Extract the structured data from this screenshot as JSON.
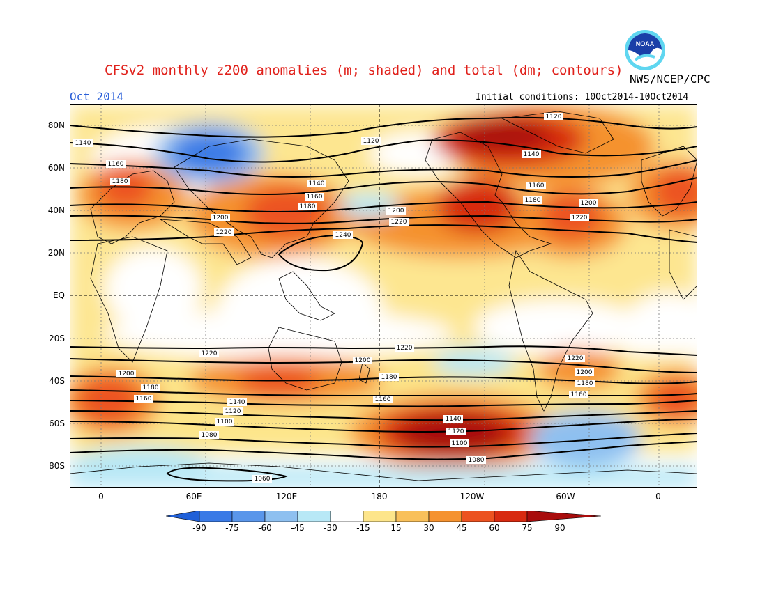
{
  "title": "CFSv2 monthly z200 anomalies (m; shaded) and total (dm; contours)",
  "agency": "NWS/NCEP/CPC",
  "month": "Oct 2014",
  "initial_conditions": "Initial conditions: 10Oct2014-10Oct2014",
  "logo": {
    "icon": "noaa-logo-icon",
    "text": "NOAA"
  },
  "lat_labels": [
    "80N",
    "60N",
    "40N",
    "20N",
    "EQ",
    "20S",
    "40S",
    "60S",
    "80S"
  ],
  "lon_labels": [
    "0",
    "60E",
    "120E",
    "180",
    "120W",
    "60W",
    "0"
  ],
  "colorbar": {
    "labels": [
      "-90",
      "-75",
      "-60",
      "-45",
      "-30",
      "-15",
      "15",
      "30",
      "45",
      "60",
      "75",
      "90"
    ],
    "colors": [
      "#2060d8",
      "#3a7ae6",
      "#5a96ea",
      "#8ec0f0",
      "#b8e8f6",
      "#ffffff",
      "#fde58a",
      "#f9c05a",
      "#f5922f",
      "#ec5220",
      "#d82a10",
      "#a80c0c"
    ]
  },
  "map_data": {
    "projection": "equirectangular",
    "lon_range": [
      "20W",
      "20E"
    ],
    "lat_range": [
      "90S",
      "90N"
    ],
    "contour_labels": {
      "1240": "1240",
      "1220": "1220",
      "1200": "1200",
      "1180": "1180",
      "1160": "1160",
      "1140": "1140",
      "1120": "1120",
      "1100": "1100",
      "1080": "1080",
      "1060": "1060"
    }
  }
}
